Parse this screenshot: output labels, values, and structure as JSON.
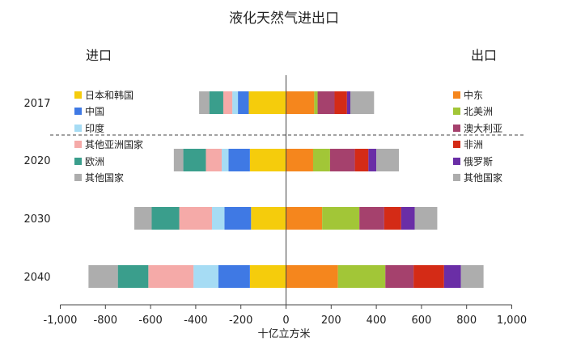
{
  "chart_data": {
    "type": "bar",
    "stacked": true,
    "orientation": "horizontal",
    "diverging": true,
    "title": "液化天然气进出口",
    "xlabel": "十亿立方米",
    "left_label": "进口",
    "right_label": "出口",
    "categories": [
      "2017",
      "2020",
      "2030",
      "2040"
    ],
    "xlim": [
      -1000,
      1000
    ],
    "xticks": [
      -1000,
      -800,
      -600,
      -400,
      -200,
      0,
      200,
      400,
      600,
      800,
      1000
    ],
    "xtick_labels": [
      "-1,000",
      "-800",
      "-600",
      "-400",
      "-200",
      "0",
      "200",
      "400",
      "600",
      "800",
      "1,000"
    ],
    "grid": false,
    "divider_after_category": "2017",
    "import_series": [
      {
        "name": "日本和韩国",
        "color": "#f5cc0c",
        "values": [
          -165,
          -160,
          -155,
          -160
        ]
      },
      {
        "name": "中国",
        "color": "#3f79e4",
        "values": [
          -48,
          -95,
          -118,
          -140
        ]
      },
      {
        "name": "印度",
        "color": "#a6dcf4",
        "values": [
          -25,
          -30,
          -55,
          -110
        ]
      },
      {
        "name": "其他亚洲国家",
        "color": "#f5aaa8",
        "values": [
          -40,
          -70,
          -145,
          -200
        ]
      },
      {
        "name": "欧洲",
        "color": "#3a9e8c",
        "values": [
          -62,
          -100,
          -122,
          -135
        ]
      },
      {
        "name": "其他国家",
        "color": "#adadad",
        "values": [
          -45,
          -42,
          -77,
          -130
        ]
      }
    ],
    "export_series": [
      {
        "name": "中东",
        "color": "#f5861d",
        "values": [
          125,
          120,
          160,
          230
        ]
      },
      {
        "name": "北美洲",
        "color": "#a2c637",
        "values": [
          15,
          75,
          165,
          210
        ]
      },
      {
        "name": "澳大利亚",
        "color": "#a5416d",
        "values": [
          75,
          110,
          110,
          125
        ]
      },
      {
        "name": "非洲",
        "color": "#d42b16",
        "values": [
          55,
          60,
          75,
          135
        ]
      },
      {
        "name": "俄罗斯",
        "color": "#6a2ea6",
        "values": [
          15,
          35,
          60,
          75
        ]
      },
      {
        "name": "其他国家",
        "color": "#adadad",
        "values": [
          105,
          100,
          100,
          100
        ]
      }
    ]
  }
}
